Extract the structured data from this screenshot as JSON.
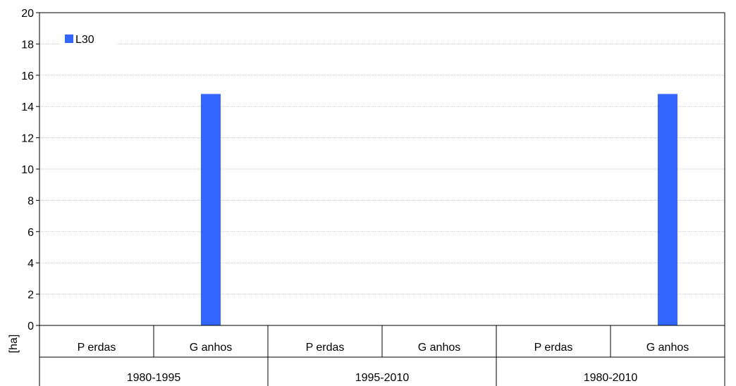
{
  "chart_data": {
    "type": "bar",
    "title": "",
    "xlabel": "",
    "ylabel": "[ha]",
    "ylim": [
      0,
      20
    ],
    "yticks": [
      0,
      2,
      4,
      6,
      8,
      10,
      12,
      14,
      16,
      18,
      20
    ],
    "grid": true,
    "legend_position": "top-left",
    "groups": [
      {
        "label": "1980-1995",
        "categories": [
          "P erdas",
          "G anhos"
        ]
      },
      {
        "label": "1995-2010",
        "categories": [
          "P erdas",
          "G anhos"
        ]
      },
      {
        "label": "1980-2010",
        "categories": [
          "P erdas",
          "G anhos"
        ]
      }
    ],
    "series": [
      {
        "name": "L30",
        "color": "#3366ff",
        "values": [
          0,
          14.8,
          0,
          0,
          0,
          14.8
        ]
      }
    ]
  }
}
